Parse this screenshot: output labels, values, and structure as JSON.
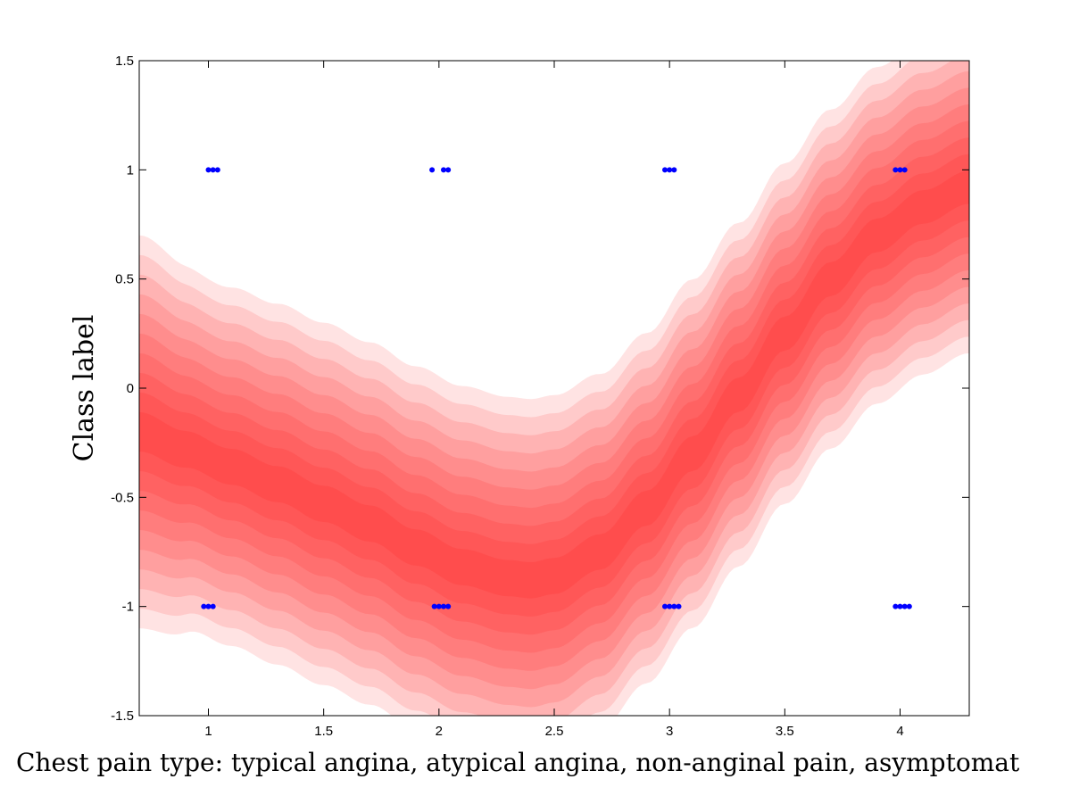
{
  "chart_data": {
    "type": "area",
    "title": "",
    "xlabel": "Chest pain type: typical angina, atypical angina, non-anginal pain, asymptomat",
    "ylabel": "Class label",
    "xlim": [
      0.7,
      4.3
    ],
    "ylim": [
      -1.5,
      1.5
    ],
    "x_ticks": [
      "1",
      "1.5",
      "2",
      "2.5",
      "3",
      "3.5",
      "4"
    ],
    "y_ticks": [
      "1.5",
      "1",
      "0.5",
      "0",
      "-0.5",
      "-1",
      "-1.5"
    ],
    "x_tick_values": [
      1,
      1.5,
      2,
      2.5,
      3,
      3.5,
      4
    ],
    "y_tick_values": [
      1.5,
      1,
      0.5,
      0,
      -0.5,
      -1,
      -1.5
    ],
    "grid": false,
    "legend": "none",
    "band_color": "#ff0000",
    "point_color": "#0000ff",
    "band_levels": 10,
    "mean_curve": {
      "x": [
        0.7,
        0.9,
        1.1,
        1.3,
        1.5,
        1.7,
        1.9,
        2.1,
        2.3,
        2.4,
        2.5,
        2.7,
        2.9,
        3.1,
        3.3,
        3.5,
        3.7,
        3.9,
        4.1,
        4.3
      ],
      "y": [
        -0.2,
        -0.28,
        -0.36,
        -0.44,
        -0.53,
        -0.62,
        -0.73,
        -0.82,
        -0.87,
        -0.88,
        -0.86,
        -0.75,
        -0.55,
        -0.3,
        -0.03,
        0.25,
        0.5,
        0.7,
        0.83,
        0.92
      ]
    },
    "band_halfwidth": {
      "x": [
        0.7,
        1.0,
        1.5,
        2.0,
        2.4,
        3.0,
        3.5,
        4.0,
        4.3
      ],
      "y": [
        0.9,
        0.82,
        0.83,
        0.83,
        0.83,
        0.8,
        0.78,
        0.77,
        0.76
      ]
    },
    "data_points": {
      "x": [
        0.98,
        1.0,
        1.02,
        1.0,
        1.02,
        1.04,
        1.97,
        2.02,
        2.04,
        1.98,
        2.0,
        2.02,
        2.04,
        2.98,
        3.0,
        3.02,
        2.98,
        3.0,
        3.02,
        3.04,
        3.98,
        4.0,
        4.02,
        3.98,
        4.0,
        4.02,
        4.04
      ],
      "y": [
        -1,
        -1,
        -1,
        1,
        1,
        1,
        1,
        1,
        1,
        -1,
        -1,
        -1,
        -1,
        1,
        1,
        1,
        -1,
        -1,
        -1,
        -1,
        1,
        1,
        1,
        -1,
        -1,
        -1,
        -1
      ]
    }
  }
}
